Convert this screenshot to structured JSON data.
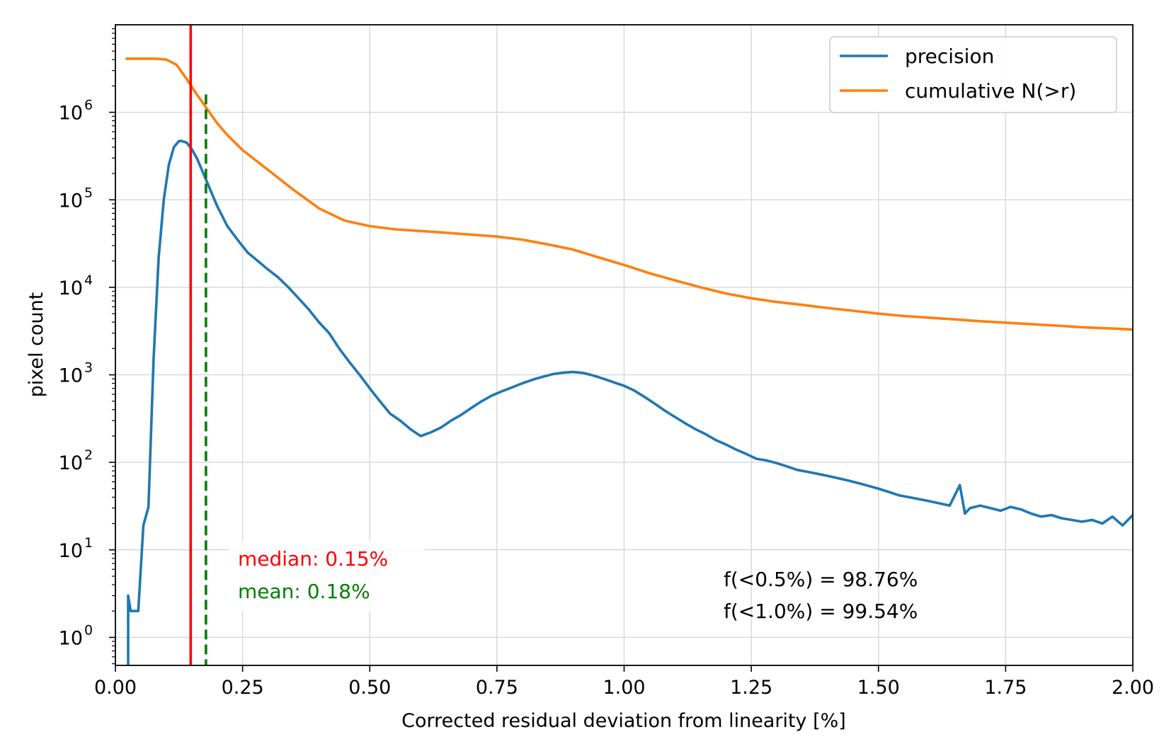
{
  "chart_data": {
    "type": "line",
    "yscale": "log",
    "xlabel": "Corrected residual deviation from linearity [%]",
    "ylabel": "pixel count",
    "xlim": [
      0.0,
      2.0
    ],
    "ylim_log10": [
      -0.32,
      7.0
    ],
    "grid": true,
    "legend_position": "top-right",
    "x_ticks": [
      {
        "value": 0.0,
        "label": "0.00"
      },
      {
        "value": 0.25,
        "label": "0.25"
      },
      {
        "value": 0.5,
        "label": "0.50"
      },
      {
        "value": 0.75,
        "label": "0.75"
      },
      {
        "value": 1.0,
        "label": "1.00"
      },
      {
        "value": 1.25,
        "label": "1.25"
      },
      {
        "value": 1.5,
        "label": "1.50"
      },
      {
        "value": 1.75,
        "label": "1.75"
      },
      {
        "value": 2.0,
        "label": "2.00"
      }
    ],
    "y_ticks": [
      {
        "exp": 0,
        "base": "10",
        "sup": "0"
      },
      {
        "exp": 1,
        "base": "10",
        "sup": "1"
      },
      {
        "exp": 2,
        "base": "10",
        "sup": "2"
      },
      {
        "exp": 3,
        "base": "10",
        "sup": "3"
      },
      {
        "exp": 4,
        "base": "10",
        "sup": "4"
      },
      {
        "exp": 5,
        "base": "10",
        "sup": "5"
      },
      {
        "exp": 6,
        "base": "10",
        "sup": "6"
      }
    ],
    "series": [
      {
        "name": "precision",
        "color": "#1f77b4",
        "x": [
          0.025,
          0.025,
          0.03,
          0.035,
          0.045,
          0.055,
          0.065,
          0.075,
          0.085,
          0.095,
          0.105,
          0.115,
          0.125,
          0.13,
          0.14,
          0.15,
          0.16,
          0.17,
          0.18,
          0.2,
          0.22,
          0.24,
          0.26,
          0.28,
          0.3,
          0.32,
          0.34,
          0.36,
          0.38,
          0.4,
          0.42,
          0.44,
          0.46,
          0.48,
          0.5,
          0.52,
          0.54,
          0.56,
          0.58,
          0.6,
          0.62,
          0.64,
          0.66,
          0.68,
          0.7,
          0.72,
          0.74,
          0.76,
          0.78,
          0.8,
          0.82,
          0.84,
          0.86,
          0.88,
          0.9,
          0.92,
          0.94,
          0.96,
          0.98,
          1.0,
          1.02,
          1.04,
          1.06,
          1.08,
          1.1,
          1.12,
          1.14,
          1.16,
          1.18,
          1.2,
          1.22,
          1.24,
          1.26,
          1.28,
          1.3,
          1.32,
          1.34,
          1.36,
          1.38,
          1.4,
          1.42,
          1.44,
          1.46,
          1.48,
          1.5,
          1.52,
          1.54,
          1.56,
          1.58,
          1.6,
          1.62,
          1.64,
          1.66,
          1.67,
          1.68,
          1.7,
          1.72,
          1.74,
          1.76,
          1.78,
          1.8,
          1.82,
          1.84,
          1.86,
          1.88,
          1.9,
          1.92,
          1.94,
          1.96,
          1.98,
          2.0
        ],
        "y": [
          0.3,
          3,
          2,
          2,
          2,
          19,
          31,
          1500,
          22000,
          100000,
          250000,
          400000,
          470000,
          470000,
          450000,
          380000,
          300000,
          220000,
          160000,
          85000,
          50000,
          35000,
          25000,
          20000,
          16000,
          13000,
          10000,
          7500,
          5600,
          4000,
          3000,
          2000,
          1400,
          1000,
          700,
          500,
          360,
          300,
          240,
          200,
          220,
          250,
          300,
          350,
          420,
          500,
          580,
          650,
          720,
          800,
          880,
          950,
          1020,
          1060,
          1080,
          1050,
          980,
          900,
          820,
          750,
          660,
          560,
          470,
          390,
          330,
          280,
          240,
          210,
          180,
          160,
          140,
          125,
          110,
          105,
          98,
          90,
          82,
          78,
          74,
          70,
          66,
          62,
          58,
          54,
          50,
          46,
          42,
          40,
          38,
          36,
          34,
          32,
          55,
          26,
          30,
          32,
          30,
          28,
          31,
          29,
          26,
          24,
          25,
          23,
          22,
          21,
          22,
          20,
          24,
          19,
          25
        ],
        "legend_label": "precision"
      },
      {
        "name": "cumulative N(>r)",
        "color": "#ff7f0e",
        "x": [
          0.02,
          0.04,
          0.06,
          0.08,
          0.1,
          0.12,
          0.14,
          0.16,
          0.18,
          0.2,
          0.22,
          0.25,
          0.3,
          0.35,
          0.4,
          0.45,
          0.5,
          0.55,
          0.6,
          0.65,
          0.7,
          0.75,
          0.8,
          0.85,
          0.9,
          0.95,
          1.0,
          1.05,
          1.1,
          1.15,
          1.2,
          1.25,
          1.3,
          1.35,
          1.4,
          1.45,
          1.5,
          1.55,
          1.6,
          1.65,
          1.7,
          1.75,
          1.8,
          1.85,
          1.9,
          1.95,
          2.0
        ],
        "y": [
          4100000,
          4100000,
          4100000,
          4100000,
          4000000,
          3500000,
          2400000,
          1600000,
          1100000,
          750000,
          550000,
          370000,
          220000,
          130000,
          80000,
          58000,
          50000,
          46000,
          44000,
          42000,
          40000,
          38000,
          35000,
          31000,
          27000,
          22000,
          18000,
          14500,
          12000,
          10000,
          8500,
          7500,
          6800,
          6300,
          5800,
          5400,
          5000,
          4700,
          4500,
          4300,
          4100,
          3950,
          3800,
          3650,
          3500,
          3400,
          3300
        ],
        "legend_label": "cumulative N(>r)"
      }
    ],
    "vlines": [
      {
        "name": "median",
        "x": 0.148,
        "color": "#ff0000",
        "style": "solid"
      },
      {
        "name": "mean",
        "x": 0.178,
        "color": "#008000",
        "style": "dashed"
      }
    ],
    "annotations": {
      "median_label": "median: 0.15%",
      "mean_label": "mean: 0.18%",
      "frac_05": "f(<0.5%) = 98.76%",
      "frac_10": "f(<1.0%) = 99.54%"
    },
    "colors": {
      "median": "#ff0000",
      "mean": "#008000",
      "grid": "#d9d9d9",
      "axes": "#000000"
    }
  }
}
